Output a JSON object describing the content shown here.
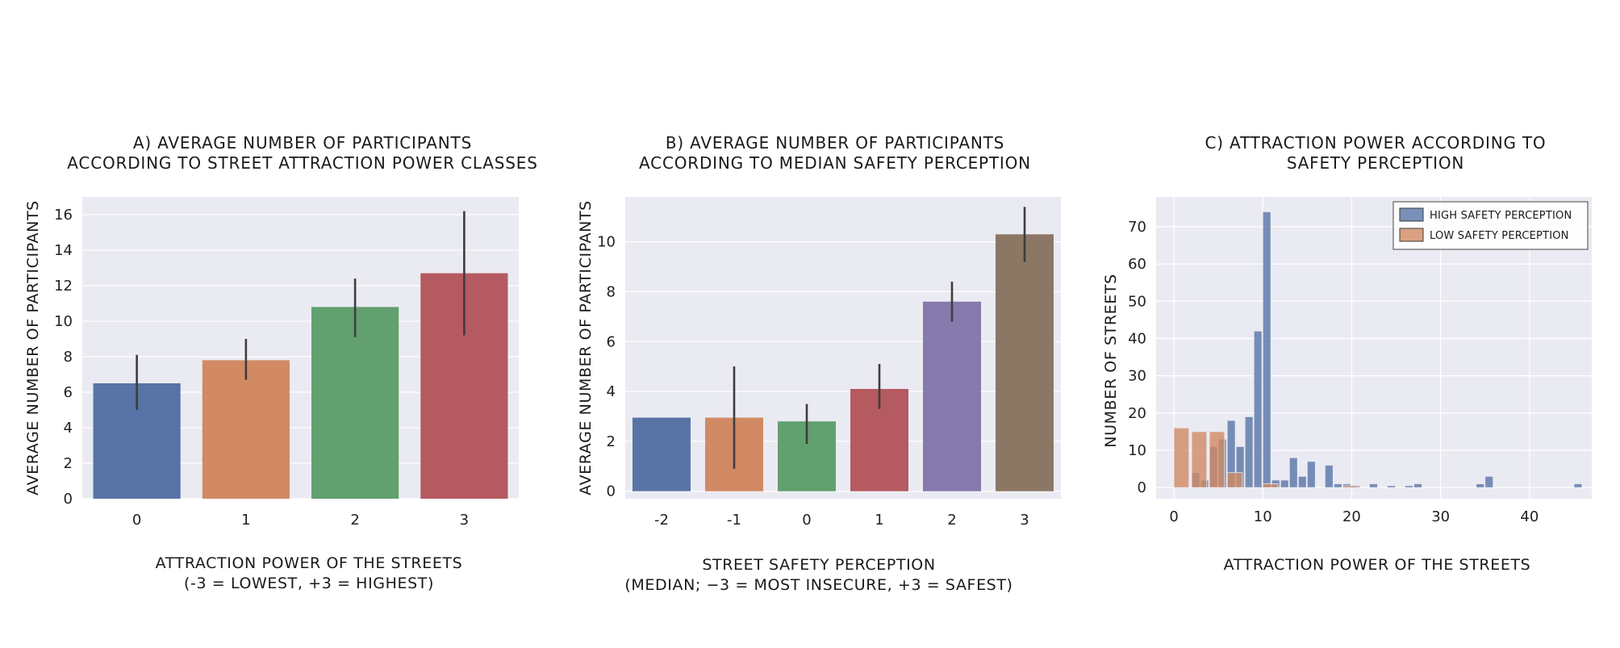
{
  "chart_data": [
    {
      "type": "bar",
      "title_lines": [
        "A) AVERAGE NUMBER OF PARTICIPANTS",
        "ACCORDING TO STREET ATTRACTION POWER CLASSES"
      ],
      "xlabel_lines": [
        "ATTRACTION POWER OF THE STREETS",
        "(-3 = LOWEST, +3 = HIGHEST)"
      ],
      "ylabel": "AVERAGE NUMBER OF PARTICIPANTS",
      "categories": [
        "0",
        "1",
        "2",
        "3"
      ],
      "values": [
        6.5,
        7.8,
        10.8,
        12.7
      ],
      "error_low": [
        5.0,
        6.7,
        9.1,
        9.2
      ],
      "error_high": [
        8.1,
        9.0,
        12.4,
        16.2
      ],
      "colors": [
        "#5874a6",
        "#d18a63",
        "#62a06f",
        "#b55a60"
      ],
      "ylim": [
        0,
        17
      ],
      "yticks": [
        0,
        2,
        4,
        6,
        8,
        10,
        12,
        14,
        16
      ],
      "grid": true
    },
    {
      "type": "bar",
      "title_lines": [
        "B) AVERAGE NUMBER OF PARTICIPANTS",
        "ACCORDING TO MEDIAN SAFETY PERCEPTION"
      ],
      "xlabel_lines": [
        "STREET SAFETY PERCEPTION",
        "(MEDIAN; −3 = MOST INSECURE, +3 = SAFEST)"
      ],
      "ylabel": "AVERAGE NUMBER OF PARTICIPANTS",
      "categories": [
        "-2",
        "-1",
        "0",
        "1",
        "2",
        "3"
      ],
      "values": [
        2.95,
        2.95,
        2.8,
        4.1,
        7.6,
        10.3
      ],
      "error_low": [
        2.95,
        0.9,
        1.9,
        3.3,
        6.8,
        9.2
      ],
      "error_high": [
        2.95,
        5.0,
        3.5,
        5.1,
        8.4,
        11.4
      ],
      "colors": [
        "#5874a6",
        "#d18a63",
        "#62a06f",
        "#b55a60",
        "#8679ab",
        "#8b7764"
      ],
      "ylim": [
        -0.3,
        11.8
      ],
      "yticks": [
        0,
        2,
        4,
        6,
        8,
        10
      ],
      "grid": true
    },
    {
      "type": "histogram",
      "title_lines": [
        "C) ATTRACTION POWER ACCORDING TO",
        "SAFETY PERCEPTION"
      ],
      "xlabel_lines": [
        "ATTRACTION POWER OF THE STREETS"
      ],
      "ylabel": "NUMBER OF STREETS",
      "xlim": [
        -2,
        47
      ],
      "ylim": [
        -3,
        78
      ],
      "xticks": [
        0,
        10,
        20,
        30,
        40
      ],
      "yticks": [
        0,
        10,
        20,
        30,
        40,
        50,
        60,
        70
      ],
      "grid": true,
      "legend_position": "top-right",
      "series": [
        {
          "name": "HIGH SAFETY PERCEPTION",
          "color": "#5874a6",
          "bin_width": 0.9,
          "bins": [
            [
              2,
              4
            ],
            [
              3,
              2
            ],
            [
              4,
              11
            ],
            [
              5,
              13
            ],
            [
              6,
              18
            ],
            [
              7,
              11
            ],
            [
              8,
              19
            ],
            [
              9,
              42
            ],
            [
              10,
              74
            ],
            [
              11,
              2
            ],
            [
              12,
              2
            ],
            [
              13,
              8
            ],
            [
              14,
              3
            ],
            [
              15,
              7
            ],
            [
              17,
              6
            ],
            [
              18,
              1
            ],
            [
              19,
              1
            ],
            [
              20,
              0.5
            ],
            [
              22,
              1
            ],
            [
              24,
              0.5
            ],
            [
              26,
              0.5
            ],
            [
              27,
              1
            ],
            [
              34,
              1
            ],
            [
              35,
              3
            ],
            [
              45,
              1
            ]
          ]
        },
        {
          "name": "LOW SAFETY PERCEPTION",
          "color": "#d18a63",
          "bin_width": 1.7,
          "bins": [
            [
              0,
              16
            ],
            [
              2,
              15
            ],
            [
              4,
              15
            ],
            [
              6,
              4
            ],
            [
              10,
              1
            ],
            [
              19,
              0.5
            ]
          ]
        }
      ]
    }
  ]
}
